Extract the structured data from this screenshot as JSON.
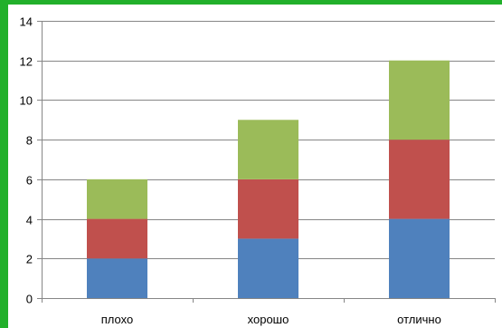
{
  "chart_data": {
    "type": "bar",
    "stacked": true,
    "categories": [
      "плохо",
      "хорошо",
      "отлично"
    ],
    "series": [
      {
        "color": "#4f81bd",
        "values": [
          2,
          3,
          4
        ]
      },
      {
        "color": "#c0504d",
        "values": [
          2,
          3,
          4
        ]
      },
      {
        "color": "#9bbb59",
        "values": [
          2,
          3,
          4
        ]
      }
    ],
    "ylim": [
      0,
      14
    ],
    "yticks": [
      0,
      2,
      4,
      6,
      8,
      10,
      12,
      14
    ],
    "grid": true,
    "legend": "none",
    "frame_color": "#22b02b",
    "gridline_color": "#868686"
  }
}
